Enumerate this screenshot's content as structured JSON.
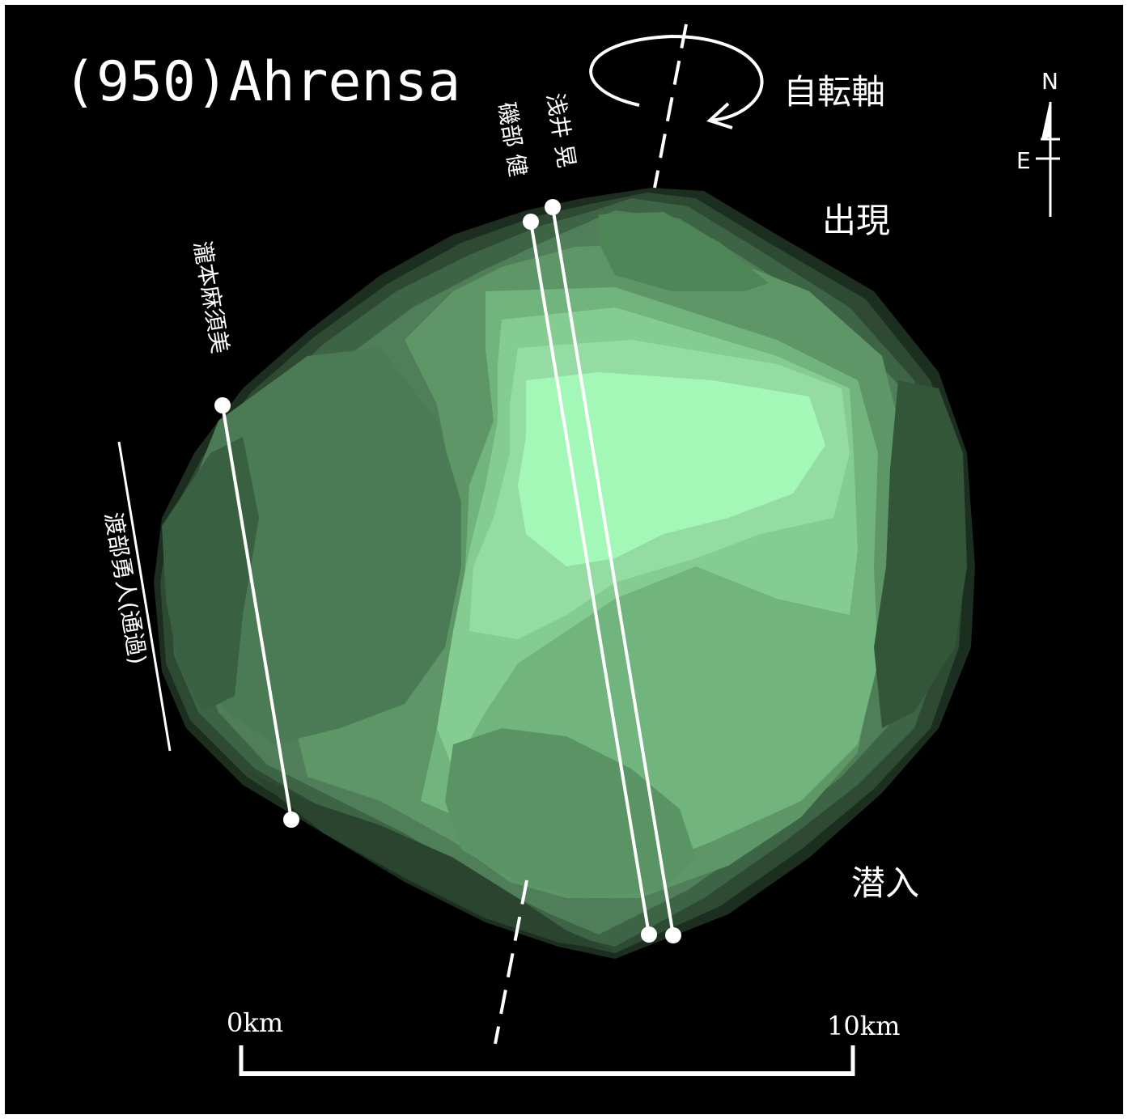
{
  "title": "(950)Ahrensa",
  "rotation_axis_label": "自転軸",
  "appearance_label": "出現",
  "disappearance_label": "潜入",
  "compass": {
    "north": "N",
    "east": "E"
  },
  "observers": [
    {
      "name": "浅井 晃"
    },
    {
      "name": "磯部 健"
    },
    {
      "name": "瀧本麻須美"
    },
    {
      "name": "渡部勇人(通過)"
    }
  ],
  "scale_bar": {
    "start_label": "0km",
    "end_label": "10km"
  },
  "colors": {
    "background": "#000000",
    "body_fill": "#8fe3a8",
    "chord": "#ffffff"
  }
}
